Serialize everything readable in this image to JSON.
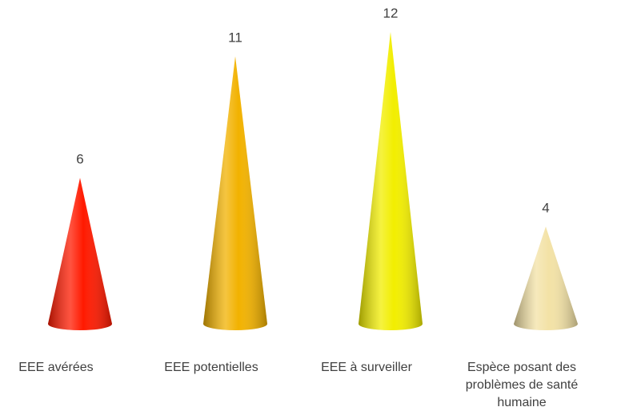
{
  "chart_data": {
    "type": "cone",
    "categories": [
      "EEE avérées",
      "EEE potentielles",
      "EEE à surveiller",
      "Espèce posant des problèmes de santé humaine"
    ],
    "values": [
      6,
      11,
      12,
      4
    ],
    "colors": [
      "#ff1a00",
      "#f2b200",
      "#f2ee00",
      "#f3e2a6"
    ]
  }
}
